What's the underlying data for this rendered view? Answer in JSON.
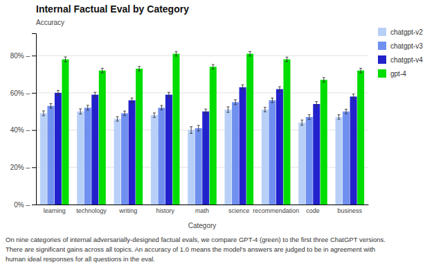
{
  "chart_data": {
    "type": "bar",
    "title": "Internal Factual Eval by Category",
    "ylabel": "Accuracy",
    "xlabel": "Category",
    "categories": [
      "learning",
      "technology",
      "writing",
      "history",
      "math",
      "science",
      "recommendation",
      "code",
      "business"
    ],
    "series": [
      {
        "name": "chatgpt-v2",
        "color": "#b8d0f8",
        "values": [
          0.49,
          0.5,
          0.46,
          0.48,
          0.4,
          0.51,
          0.51,
          0.44,
          0.47
        ],
        "errors": [
          0.013,
          0.014,
          0.012,
          0.012,
          0.018,
          0.015,
          0.012,
          0.014,
          0.012
        ]
      },
      {
        "name": "chatgpt-v3",
        "color": "#7090f0",
        "values": [
          0.53,
          0.52,
          0.49,
          0.52,
          0.41,
          0.55,
          0.56,
          0.47,
          0.5
        ],
        "errors": [
          0.012,
          0.013,
          0.012,
          0.012,
          0.015,
          0.013,
          0.012,
          0.013,
          0.012
        ]
      },
      {
        "name": "chatgpt-v4",
        "color": "#2222cc",
        "values": [
          0.6,
          0.59,
          0.56,
          0.59,
          0.5,
          0.63,
          0.62,
          0.54,
          0.58
        ],
        "errors": [
          0.013,
          0.013,
          0.012,
          0.013,
          0.013,
          0.013,
          0.013,
          0.013,
          0.013
        ]
      },
      {
        "name": "gpt-4",
        "color": "#00dd00",
        "values": [
          0.78,
          0.72,
          0.73,
          0.81,
          0.74,
          0.81,
          0.78,
          0.67,
          0.72
        ],
        "errors": [
          0.013,
          0.012,
          0.012,
          0.012,
          0.012,
          0.012,
          0.012,
          0.012,
          0.012
        ]
      }
    ],
    "ylim": [
      0,
      0.92
    ],
    "yticks": [
      {
        "value": 0.0,
        "label": "0% –"
      },
      {
        "value": 0.2,
        "label": "20% –"
      },
      {
        "value": 0.4,
        "label": "40% –"
      },
      {
        "value": 0.6,
        "label": "60% –"
      },
      {
        "value": 0.8,
        "label": "80% –"
      }
    ],
    "grid": true,
    "legend": "right",
    "annotations": [
      "On nine categories of internal adversarially-designed factual evals, we compare GPT-4 (green) to the first three ChatGPT versions.",
      "There are significant gains across all topics. An accuracy of 1.0 means the model's answers are judged to be in agreement with",
      "human ideal responses for all questions in the eval."
    ]
  }
}
